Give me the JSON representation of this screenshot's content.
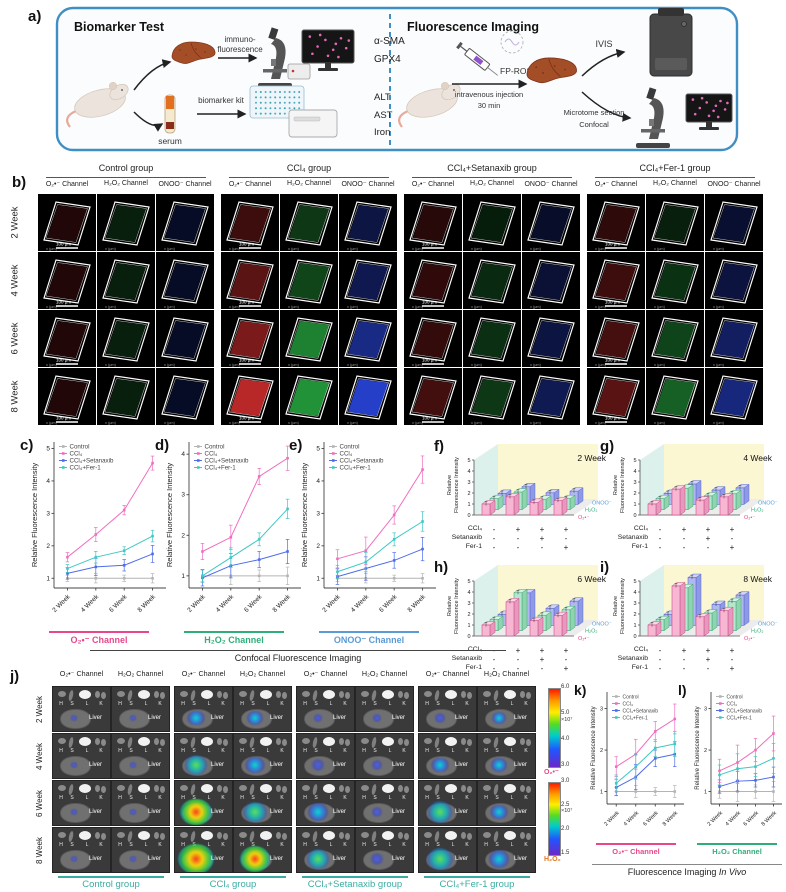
{
  "colors": {
    "panel_border_blue": "#3f8fc4",
    "control": "#b4b4b4",
    "ccl4": "#f06ec0",
    "setanaxib": "#4f6de8",
    "fer1": "#3fc8c4",
    "o2_label": "#e8488b",
    "h2o2_label": "#2fae7a",
    "onoo_label": "#5b9bd5",
    "group_teal": "#3aada3",
    "h2o2_orange": "#e07820"
  },
  "panel_a": {
    "letter": "a)",
    "left": {
      "title": "Biomarker Test",
      "immuno_label_1": "immuno-",
      "immuno_label_2": "fluorescence",
      "if_markers": [
        "α-SMA",
        "GPX4"
      ],
      "serum_label": "serum",
      "kit_label": "biomarker kit",
      "serum_markers": [
        "ALT",
        "AST",
        "Iron"
      ]
    },
    "right": {
      "title": "Fluorescence Imaging",
      "probe_label": "FP-ROS",
      "injection_line_1": "intravenous injection",
      "injection_line_2": "30 min",
      "ivis_label": "IVIS",
      "section_line_1": "Microtome section",
      "section_line_2": "Confocal"
    }
  },
  "panel_b": {
    "letter": "b)",
    "groups": [
      "Control group",
      "CCl₄ group",
      "CCl₄+Setanaxib group",
      "CCl₄+Fer-1 group"
    ],
    "channels": [
      "O₂•⁻ Channel",
      "H₂O₂ Channel",
      "ONOO⁻ Channel"
    ],
    "weeks": [
      "2 Week",
      "4 Week",
      "6 Week",
      "8 Week"
    ],
    "scale_bar": "100 μm",
    "axis_label": "x (μm)"
  },
  "confocal_caption": "Confocal Fluorescence Imaging",
  "invivo_caption": [
    "Fluorescence Imaging ",
    "In Vivo"
  ],
  "sign_rows": [
    {
      "label": "CCl₄",
      "signs": [
        "-",
        "+",
        "+",
        "+"
      ]
    },
    {
      "label": "Setanaxib",
      "signs": [
        "-",
        "-",
        "+",
        "-"
      ]
    },
    {
      "label": "Fer-1",
      "signs": [
        "-",
        "-",
        "-",
        "+"
      ]
    }
  ],
  "panel_j": {
    "letter": "j)",
    "channel_pair": [
      "O₂•⁻ Channel",
      "H₂O₂ Channel"
    ],
    "groups": [
      "Control group",
      "CCl₄ group",
      "CCl₄+Setanaxib group",
      "CCl₄+Fer-1 group"
    ],
    "weeks": [
      "2 Week",
      "4 Week",
      "6 Week",
      "8 Week"
    ],
    "organ_letters": [
      "H",
      "S",
      "L",
      "K"
    ],
    "liver_label": "Liver",
    "colorbars": [
      {
        "ticks": [
          "6.0",
          "5.0",
          "4.0",
          "3.0"
        ],
        "exponent": "×10⁷",
        "label": "O₂•⁻",
        "label_color": "#e8488b"
      },
      {
        "ticks": [
          "3.0",
          "2.5",
          "2.0",
          "1.5"
        ],
        "exponent": "×10⁷",
        "label": "H₂O₂",
        "label_color": "#e07820"
      }
    ]
  },
  "chart_data": [
    {
      "id": "c",
      "type": "line",
      "panel_letter": "c)",
      "ylabel": "Relative Fluorescence Intensity",
      "categories": [
        "2 Week",
        "4 Week",
        "6 Week",
        "8 Week"
      ],
      "yticks": [
        1,
        2,
        3,
        4,
        5
      ],
      "ylim": [
        0.7,
        5.2
      ],
      "channel_label": "O₂•⁻ Channel",
      "channel_color": "#e8488b",
      "legend_position": "top-left",
      "grid": false,
      "series": [
        {
          "name": "Control",
          "color": "#b4b4b4",
          "values": [
            1.0,
            1.0,
            1.0,
            1.0
          ],
          "err": 0.12
        },
        {
          "name": "CCl₄",
          "color": "#f06ec0",
          "values": [
            1.65,
            2.35,
            3.1,
            4.55
          ],
          "err": 0.18
        },
        {
          "name": "CCl₄+Setanaxib",
          "color": "#4f6de8",
          "values": [
            1.15,
            1.35,
            1.4,
            1.75
          ],
          "err": 0.22
        },
        {
          "name": "CCl₄+Fer-1",
          "color": "#3fc8c4",
          "values": [
            1.3,
            1.65,
            1.85,
            2.3
          ],
          "err": 0.15
        }
      ]
    },
    {
      "id": "d",
      "type": "line",
      "panel_letter": "d)",
      "ylabel": "Relative Fluorescence Intensity",
      "categories": [
        "2 Week",
        "4 Week",
        "6 Week",
        "8 Week"
      ],
      "yticks": [
        1,
        2,
        3,
        4
      ],
      "ylim": [
        0.7,
        4.3
      ],
      "channel_label": "H₂O₂ Channel",
      "channel_color": "#2fae7a",
      "legend_position": "top-left",
      "grid": false,
      "series": [
        {
          "name": "Control",
          "color": "#b4b4b4",
          "values": [
            1.0,
            1.0,
            1.0,
            1.0
          ],
          "err": 0.18
        },
        {
          "name": "CCl₄",
          "color": "#f06ec0",
          "values": [
            1.6,
            1.95,
            3.45,
            3.9
          ],
          "err": 0.25
        },
        {
          "name": "CCl₄+Setanaxib",
          "color": "#4f6de8",
          "values": [
            0.95,
            1.25,
            1.4,
            1.6
          ],
          "err": 0.25
        },
        {
          "name": "CCl₄+Fer-1",
          "color": "#3fc8c4",
          "values": [
            1.0,
            1.45,
            1.9,
            2.65
          ],
          "err": 0.2
        }
      ]
    },
    {
      "id": "e",
      "type": "line",
      "panel_letter": "e)",
      "ylabel": "Relative Fluorescence Intensity",
      "categories": [
        "2 Week",
        "4 Week",
        "6 Week",
        "8 Week"
      ],
      "yticks": [
        1,
        2,
        3,
        4,
        5
      ],
      "ylim": [
        0.7,
        5.2
      ],
      "channel_label": "ONOO⁻ Channel",
      "channel_color": "#5b9bd5",
      "legend_position": "top-left",
      "grid": false,
      "series": [
        {
          "name": "Control",
          "color": "#b4b4b4",
          "values": [
            1.0,
            1.0,
            1.0,
            1.0
          ],
          "err": 0.12
        },
        {
          "name": "CCl₄",
          "color": "#f06ec0",
          "values": [
            1.6,
            1.85,
            2.95,
            4.35
          ],
          "err": 0.35
        },
        {
          "name": "CCl₄+Setanaxib",
          "color": "#4f6de8",
          "values": [
            1.05,
            1.3,
            1.55,
            1.9
          ],
          "err": 0.3
        },
        {
          "name": "CCl₄+Fer-1",
          "color": "#3fc8c4",
          "values": [
            1.2,
            1.5,
            2.2,
            2.75
          ],
          "err": 0.25
        }
      ]
    },
    {
      "id": "f",
      "type": "bar3d",
      "panel_letter": "f)",
      "title": "2 Week",
      "ylabel_1": "Relative",
      "ylabel_2": "Fluorescence Intensity",
      "yticks": [
        0,
        1,
        2,
        3,
        4,
        5
      ],
      "ylim": [
        0,
        5
      ],
      "group_conditions": [
        "Control",
        "CCl₄",
        "CCl₄+Setanaxib",
        "CCl₄+Fer-1"
      ],
      "err": 0.08,
      "depth_labels": [
        {
          "text": "O₂•⁻",
          "color": "#e8488b"
        },
        {
          "text": "H₂O₂",
          "color": "#2fae7a"
        },
        {
          "text": "ONOO⁻",
          "color": "#5b9bd5"
        }
      ],
      "series": [
        {
          "name": "O₂•⁻",
          "values": [
            1.0,
            1.65,
            1.15,
            1.3
          ]
        },
        {
          "name": "H₂O₂",
          "values": [
            1.0,
            1.6,
            0.95,
            1.0
          ]
        },
        {
          "name": "ONOO⁻",
          "values": [
            1.0,
            1.6,
            1.05,
            1.2
          ]
        }
      ]
    },
    {
      "id": "g",
      "type": "bar3d",
      "panel_letter": "g)",
      "title": "4 Week",
      "ylabel_1": "Relative",
      "ylabel_2": "Fluorescence Intensity",
      "yticks": [
        0,
        1,
        2,
        3,
        4,
        5
      ],
      "ylim": [
        0,
        5
      ],
      "group_conditions": [
        "Control",
        "CCl₄",
        "CCl₄+Setanaxib",
        "CCl₄+Fer-1"
      ],
      "err": 0.08,
      "depth_labels": [
        {
          "text": "O₂•⁻",
          "color": "#e8488b"
        },
        {
          "text": "H₂O₂",
          "color": "#2fae7a"
        },
        {
          "text": "ONOO⁻",
          "color": "#5b9bd5"
        }
      ],
      "series": [
        {
          "name": "O₂•⁻",
          "values": [
            1.0,
            2.35,
            1.35,
            1.65
          ]
        },
        {
          "name": "H₂O₂",
          "values": [
            1.0,
            1.95,
            1.25,
            1.45
          ]
        },
        {
          "name": "ONOO⁻",
          "values": [
            1.0,
            1.85,
            1.3,
            1.5
          ]
        }
      ]
    },
    {
      "id": "h",
      "type": "bar3d",
      "panel_letter": "h)",
      "title": "6 Week",
      "ylabel_1": "Relative",
      "ylabel_2": "Fluorescence Intensity",
      "yticks": [
        0,
        1,
        2,
        3,
        4,
        5
      ],
      "ylim": [
        0,
        5
      ],
      "group_conditions": [
        "Control",
        "CCl₄",
        "CCl₄+Setanaxib",
        "CCl₄+Fer-1"
      ],
      "err": 0.08,
      "depth_labels": [
        {
          "text": "O₂•⁻",
          "color": "#e8488b"
        },
        {
          "text": "H₂O₂",
          "color": "#2fae7a"
        },
        {
          "text": "ONOO⁻",
          "color": "#5b9bd5"
        }
      ],
      "series": [
        {
          "name": "O₂•⁻",
          "values": [
            1.0,
            3.1,
            1.4,
            1.85
          ]
        },
        {
          "name": "H₂O₂",
          "values": [
            1.0,
            3.45,
            1.4,
            1.9
          ]
        },
        {
          "name": "ONOO⁻",
          "values": [
            1.0,
            2.95,
            1.55,
            2.2
          ]
        }
      ]
    },
    {
      "id": "i",
      "type": "bar3d",
      "panel_letter": "i)",
      "title": "8 Week",
      "ylabel_1": "Relative",
      "ylabel_2": "Fluorescence Intensity",
      "yticks": [
        0,
        1,
        2,
        3,
        4,
        5
      ],
      "ylim": [
        0,
        5
      ],
      "group_conditions": [
        "Control",
        "CCl₄",
        "CCl₄+Setanaxib",
        "CCl₄+Fer-1"
      ],
      "err": 0.08,
      "depth_labels": [
        {
          "text": "O₂•⁻",
          "color": "#e8488b"
        },
        {
          "text": "H₂O₂",
          "color": "#2fae7a"
        },
        {
          "text": "ONOO⁻",
          "color": "#5b9bd5"
        }
      ],
      "series": [
        {
          "name": "O₂•⁻",
          "values": [
            1.0,
            4.55,
            1.75,
            2.3
          ]
        },
        {
          "name": "H₂O₂",
          "values": [
            1.0,
            3.9,
            1.6,
            2.65
          ]
        },
        {
          "name": "ONOO⁻",
          "values": [
            1.0,
            4.35,
            1.9,
            2.75
          ]
        }
      ]
    },
    {
      "id": "k",
      "type": "line",
      "panel_letter": "k)",
      "ylabel": "Relative Fluorescence Intensity",
      "categories": [
        "2 Week",
        "4 Week",
        "6 Week",
        "8 Week"
      ],
      "yticks": [
        1,
        2,
        3
      ],
      "ylim": [
        0.7,
        3.4
      ],
      "channel_label": "O₂•⁻ Channel",
      "channel_color": "#e8488b",
      "legend_position": "top-left",
      "grid": false,
      "series": [
        {
          "name": "Control",
          "color": "#b4b4b4",
          "values": [
            1.0,
            1.0,
            1.0,
            1.0
          ],
          "err": 0.12
        },
        {
          "name": "CCl₄",
          "color": "#f06ec0",
          "values": [
            1.6,
            1.9,
            2.45,
            2.75
          ],
          "err": 0.3
        },
        {
          "name": "CCl₄+Setanaxib",
          "color": "#4f6de8",
          "values": [
            1.1,
            1.35,
            1.8,
            1.9
          ],
          "err": 0.25
        },
        {
          "name": "CCl₄+Fer-1",
          "color": "#3fc8c4",
          "values": [
            1.2,
            1.6,
            2.05,
            2.15
          ],
          "err": 0.25
        }
      ]
    },
    {
      "id": "l",
      "type": "line",
      "panel_letter": "l)",
      "ylabel": "Relative Fluorescence Intensity",
      "categories": [
        "2 Week",
        "4 Week",
        "6 Week",
        "8 Week"
      ],
      "yticks": [
        1,
        2,
        3
      ],
      "ylim": [
        0.7,
        3.4
      ],
      "channel_label": "H₂O₂ Channel",
      "channel_color": "#2fae7a",
      "legend_position": "top-left",
      "grid": false,
      "series": [
        {
          "name": "Control",
          "color": "#b4b4b4",
          "values": [
            1.0,
            1.0,
            1.0,
            1.0
          ],
          "err": 0.2
        },
        {
          "name": "CCl₄",
          "color": "#f06ec0",
          "values": [
            1.5,
            1.7,
            2.0,
            2.4
          ],
          "err": 0.35
        },
        {
          "name": "CCl₄+Setanaxib",
          "color": "#4f6de8",
          "values": [
            1.12,
            1.25,
            1.27,
            1.35
          ],
          "err": 0.2
        },
        {
          "name": "CCl₄+Fer-1",
          "color": "#3fc8c4",
          "values": [
            1.4,
            1.55,
            1.6,
            1.8
          ],
          "err": 0.3
        }
      ]
    }
  ]
}
